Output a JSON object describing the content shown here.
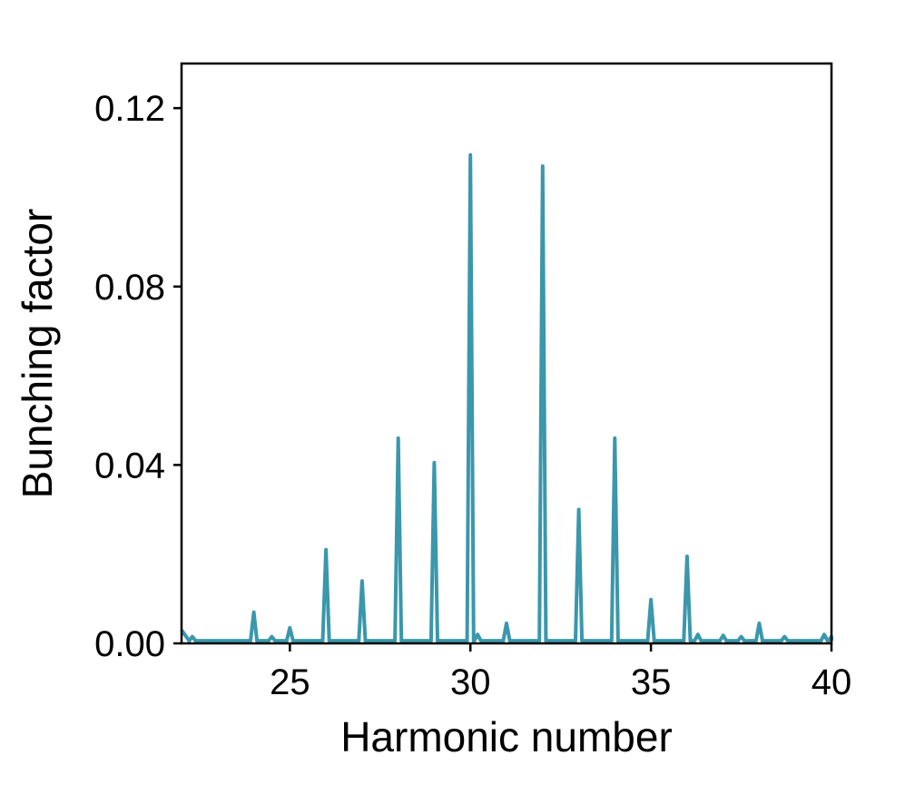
{
  "chart_data": {
    "type": "line",
    "title": "",
    "xlabel": "Harmonic number",
    "ylabel": "Bunching factor",
    "xlim": [
      22,
      40
    ],
    "ylim": [
      0,
      0.13
    ],
    "xticks": [
      25,
      30,
      35,
      40
    ],
    "xtick_labels": [
      "25",
      "30",
      "35",
      "40"
    ],
    "yticks": [
      0,
      0.04,
      0.08,
      0.12
    ],
    "ytick_labels": [
      "0.00",
      "0.04",
      "0.08",
      "0.12"
    ],
    "grid": false,
    "line_color": "#3a97ac",
    "series": [
      {
        "peaks": [
          {
            "x": 22,
            "y": 0.003
          },
          {
            "x": 22.3,
            "y": 0.0015
          },
          {
            "x": 24,
            "y": 0.007
          },
          {
            "x": 24.5,
            "y": 0.0015
          },
          {
            "x": 25,
            "y": 0.0035
          },
          {
            "x": 26,
            "y": 0.021
          },
          {
            "x": 27,
            "y": 0.014
          },
          {
            "x": 28,
            "y": 0.046
          },
          {
            "x": 29,
            "y": 0.0405
          },
          {
            "x": 30,
            "y": 0.1095
          },
          {
            "x": 30.2,
            "y": 0.002
          },
          {
            "x": 31,
            "y": 0.0045
          },
          {
            "x": 32,
            "y": 0.107
          },
          {
            "x": 33,
            "y": 0.03
          },
          {
            "x": 34,
            "y": 0.046
          },
          {
            "x": 35,
            "y": 0.0098
          },
          {
            "x": 36,
            "y": 0.0195
          },
          {
            "x": 36.3,
            "y": 0.002
          },
          {
            "x": 37,
            "y": 0.0018
          },
          {
            "x": 37.5,
            "y": 0.0015
          },
          {
            "x": 38,
            "y": 0.0045
          },
          {
            "x": 38.7,
            "y": 0.0015
          },
          {
            "x": 39.8,
            "y": 0.002
          },
          {
            "x": 40,
            "y": 0.0015
          }
        ]
      }
    ]
  }
}
